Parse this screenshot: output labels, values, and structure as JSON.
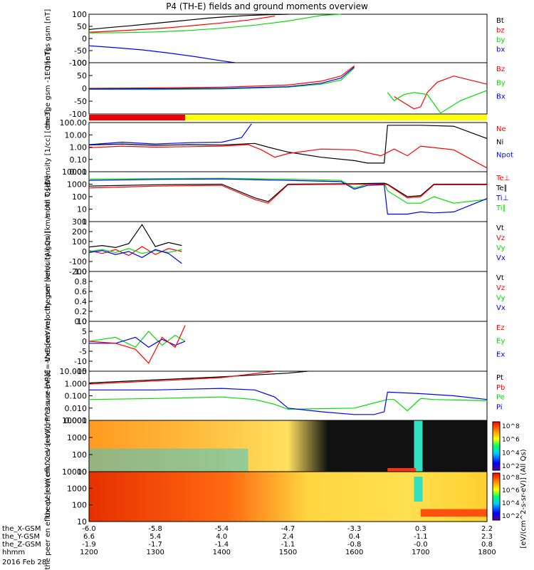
{
  "title": "P4 (TH-E) fields and ground moments overview",
  "colors": {
    "black": "#000000",
    "red": "#ff0000",
    "green": "#00dd00",
    "blue": "#0000ff",
    "yellow": "#ffff00"
  },
  "bottom_axis": {
    "times": [
      "1200",
      "1300",
      "1400",
      "1500",
      "1600",
      "1700",
      "1800"
    ],
    "rows": [
      {
        "label": "the_X-GSM",
        "values": [
          "-6.0",
          "-5.8",
          "-5.4",
          "-4.7",
          "-3.3",
          "0.3",
          "2.2"
        ]
      },
      {
        "label": "the_Y-GSM",
        "values": [
          "6.6",
          "5.4",
          "4.0",
          "2.4",
          "0.4",
          "-1.1",
          "2.3"
        ]
      },
      {
        "label": "the_Z-GSM",
        "values": [
          "-1.9",
          "-1.7",
          "-1.4",
          "-1.1",
          "-0.8",
          "-0.0",
          "0.8"
        ]
      },
      {
        "label": "hhmm",
        "values": []
      }
    ],
    "date": "2016 Feb 28"
  },
  "chart_data": [
    {
      "id": "fgs",
      "type": "line",
      "ylabel": "the fgs gsm [nT]",
      "ylim": [
        -100,
        100
      ],
      "ticks": [
        "100",
        "50",
        "0",
        "-50",
        "-100"
      ],
      "legend": [
        {
          "name": "Bt",
          "color": "#000000"
        },
        {
          "name": "bz",
          "color": "#ff0000"
        },
        {
          "name": "by",
          "color": "#00dd00"
        },
        {
          "name": "bx",
          "color": "#0000ff"
        }
      ],
      "series": [
        {
          "name": "Bt",
          "color": "#000000",
          "x": [
            1200,
            1230,
            1260,
            1290,
            1320,
            1350,
            1380,
            1410,
            1440,
            1470,
            1500
          ],
          "y": [
            37,
            45,
            52,
            60,
            68,
            76,
            84,
            90,
            95,
            98,
            100
          ]
        },
        {
          "name": "bz",
          "color": "#ff0000",
          "x": [
            1200,
            1240,
            1280,
            1320,
            1360,
            1400,
            1440,
            1480
          ],
          "y": [
            26,
            31,
            37,
            44,
            54,
            64,
            76,
            92
          ]
        },
        {
          "name": "by",
          "color": "#00dd00",
          "x": [
            1200,
            1250,
            1300,
            1350,
            1400,
            1450,
            1500,
            1550,
            1580
          ],
          "y": [
            23,
            24,
            27,
            33,
            42,
            55,
            72,
            95,
            100
          ]
        },
        {
          "name": "bx",
          "color": "#0000ff",
          "x": [
            1200,
            1240,
            1280,
            1320,
            1360,
            1400,
            1420
          ],
          "y": [
            -30,
            -38,
            -47,
            -60,
            -75,
            -92,
            -100
          ]
        }
      ]
    },
    {
      "id": "fge",
      "type": "line",
      "ylabel": "the fge gsm -1EQ [nT]",
      "ylim": [
        -125,
        125
      ],
      "ticks": [
        "100",
        "50",
        "0",
        "-50",
        "-100"
      ],
      "legend": [
        {
          "name": "Bz",
          "color": "#ff0000"
        },
        {
          "name": "By",
          "color": "#00dd00"
        },
        {
          "name": "Bx",
          "color": "#0000ff"
        }
      ],
      "series": [
        {
          "name": "Bz",
          "color": "#ff0000",
          "x": [
            1200,
            1300,
            1400,
            1500,
            1550,
            1580,
            1600
          ],
          "y": [
            0,
            2,
            6,
            16,
            35,
            60,
            110
          ]
        },
        {
          "name": "By",
          "color": "#00dd00",
          "x": [
            1200,
            1300,
            1400,
            1500,
            1550,
            1580,
            1600
          ],
          "y": [
            -5,
            -6,
            -3,
            6,
            20,
            40,
            100
          ]
        },
        {
          "name": "Bx",
          "color": "#0000ff",
          "x": [
            1200,
            1300,
            1400,
            1500,
            1550,
            1580,
            1600
          ],
          "y": [
            -3,
            -2,
            0,
            8,
            25,
            50,
            105
          ]
        },
        {
          "name": "Bz",
          "color": "#ff0000",
          "x": [
            1660,
            1675,
            1690,
            1700,
            1710,
            1725,
            1750,
            1800
          ],
          "y": [
            -40,
            -70,
            -100,
            -90,
            -20,
            30,
            60,
            20
          ]
        },
        {
          "name": "By",
          "color": "#00dd00",
          "x": [
            1650,
            1660,
            1675,
            1690,
            1710,
            1730,
            1760,
            1800
          ],
          "y": [
            -20,
            -60,
            -30,
            -20,
            -30,
            -120,
            -60,
            -10
          ]
        }
      ]
    },
    {
      "id": "density",
      "type": "line",
      "ylabel": "Density [1/cc] [cm-3]",
      "scale": "log",
      "ylim": [
        0.01,
        100
      ],
      "ticks": [
        "100.00",
        "10.00",
        "1.00",
        "0.10",
        "0.01"
      ],
      "legend": [
        {
          "name": "Ne",
          "color": "#ff0000"
        },
        {
          "name": "Ni",
          "color": "#000000"
        },
        {
          "name": "Npot",
          "color": "#0000ff"
        }
      ],
      "series": [
        {
          "name": "Ni",
          "color": "#000000",
          "x": [
            1200,
            1250,
            1300,
            1350,
            1400,
            1450,
            1470,
            1500,
            1550,
            1600,
            1620,
            1645,
            1650,
            1700,
            1750,
            1800
          ],
          "y": [
            1.5,
            1.8,
            1.4,
            1.6,
            1.5,
            2,
            1,
            0.4,
            0.15,
            0.08,
            0.05,
            0.05,
            60,
            60,
            50,
            5
          ]
        },
        {
          "name": "Ne",
          "color": "#ff0000",
          "x": [
            1200,
            1250,
            1300,
            1350,
            1400,
            1440,
            1460,
            1480,
            1500,
            1550,
            1600,
            1640,
            1660,
            1680,
            1700,
            1750,
            1800
          ],
          "y": [
            0.9,
            1.2,
            1.0,
            1.1,
            1.2,
            1.6,
            0.6,
            0.15,
            0.3,
            0.7,
            0.6,
            0.2,
            0.7,
            0.2,
            1.2,
            0.6,
            0.02
          ]
        },
        {
          "name": "Npot",
          "color": "#0000ff",
          "x": [
            1200,
            1250,
            1300,
            1350,
            1400,
            1430,
            1445
          ],
          "y": [
            1.6,
            2.5,
            1.8,
            2.3,
            2.5,
            6,
            80
          ]
        }
      ]
    },
    {
      "id": "temp",
      "type": "line",
      "ylabel": "mom T [eV]",
      "scale": "log",
      "ylim": [
        1,
        10000
      ],
      "ticks": [
        "10000",
        "1000",
        "100",
        "10",
        "1"
      ],
      "legend": [
        {
          "name": "Te⊥",
          "color": "#ff0000"
        },
        {
          "name": "Te∥",
          "color": "#000000"
        },
        {
          "name": "Ti⊥",
          "color": "#0000ff"
        },
        {
          "name": "Ti∥",
          "color": "#00dd00"
        }
      ],
      "series": [
        {
          "name": "Ti∥",
          "color": "#00dd00",
          "x": [
            1200,
            1300,
            1400,
            1500,
            1580,
            1600,
            1620,
            1645,
            1650,
            1680,
            1700,
            1720,
            1750,
            1800
          ],
          "y": [
            2500,
            2800,
            3000,
            2500,
            2000,
            500,
            1000,
            1200,
            300,
            30,
            30,
            100,
            30,
            60
          ]
        },
        {
          "name": "Ti⊥",
          "color": "#0000ff",
          "x": [
            1200,
            1300,
            1400,
            1500,
            1580,
            1600,
            1620,
            1645,
            1650,
            1680,
            1700,
            1720,
            1750,
            1800
          ],
          "y": [
            2000,
            2400,
            2600,
            2000,
            1600,
            400,
            800,
            900,
            4,
            4,
            6,
            5,
            6,
            70
          ]
        },
        {
          "name": "Te∥",
          "color": "#000000",
          "x": [
            1200,
            1300,
            1400,
            1450,
            1470,
            1500,
            1600,
            1645,
            1650,
            1680,
            1700,
            1720,
            1800
          ],
          "y": [
            700,
            900,
            1000,
            80,
            40,
            1000,
            1100,
            1200,
            1000,
            100,
            120,
            1000,
            1000
          ]
        },
        {
          "name": "Te⊥",
          "color": "#ff0000",
          "x": [
            1200,
            1300,
            1400,
            1450,
            1470,
            1500,
            1600,
            1645,
            1650,
            1680,
            1700,
            1720,
            1800
          ],
          "y": [
            500,
            700,
            800,
            60,
            30,
            900,
            1000,
            1000,
            900,
            80,
            100,
            900,
            900
          ]
        }
      ]
    },
    {
      "id": "peir_velocity",
      "type": "line",
      "ylabel": "the peir velocity gsm [km/s (All Qs)]",
      "ylim": [
        -200,
        300
      ],
      "ticks": [
        "300",
        "200",
        "100",
        "0",
        "-100",
        "-200"
      ],
      "legend": [
        {
          "name": "Vt",
          "color": "#000000"
        },
        {
          "name": "Vz",
          "color": "#ff0000"
        },
        {
          "name": "Vy",
          "color": "#00dd00"
        },
        {
          "name": "Vx",
          "color": "#0000ff"
        }
      ],
      "series": [
        {
          "name": "Vt",
          "color": "#000000",
          "x": [
            1200,
            1220,
            1240,
            1260,
            1280,
            1300,
            1320,
            1340
          ],
          "y": [
            45,
            60,
            40,
            80,
            270,
            50,
            90,
            60
          ]
        },
        {
          "name": "Vz",
          "color": "#ff0000",
          "x": [
            1200,
            1220,
            1240,
            1260,
            1280,
            1300,
            1320,
            1340
          ],
          "y": [
            10,
            -20,
            20,
            -40,
            50,
            -30,
            30,
            0
          ]
        },
        {
          "name": "Vy",
          "color": "#00dd00",
          "x": [
            1200,
            1220,
            1240,
            1260,
            1280,
            1300,
            1320,
            1340
          ],
          "y": [
            0,
            20,
            -10,
            30,
            -20,
            10,
            -10,
            20
          ]
        },
        {
          "name": "Vx",
          "color": "#0000ff",
          "x": [
            1200,
            1220,
            1240,
            1260,
            1280,
            1300,
            1320,
            1340
          ],
          "y": [
            -10,
            10,
            -30,
            0,
            -60,
            20,
            -20,
            -120
          ]
        }
      ]
    },
    {
      "id": "peer_velocity",
      "type": "line",
      "ylabel": "the peer velocity gsm [km/s (All Qs)]",
      "ylim": [
        0,
        1
      ],
      "ticks": [
        "1.0",
        "0.8",
        "0.6",
        "0.4",
        "0.2",
        "0.0"
      ],
      "legend": [
        {
          "name": "Vt",
          "color": "#000000"
        },
        {
          "name": "Vz",
          "color": "#ff0000"
        },
        {
          "name": "Vy",
          "color": "#00dd00"
        },
        {
          "name": "Vx",
          "color": "#0000ff"
        }
      ],
      "series": []
    },
    {
      "id": "efield",
      "type": "line",
      "ylabel": "E=-VxB [mV/m]",
      "ylim": [
        -15,
        10
      ],
      "ticks": [
        "10",
        "5",
        "0",
        "-5",
        "-10",
        "-15"
      ],
      "legend": [
        {
          "name": "Ez",
          "color": "#ff0000"
        },
        {
          "name": "Ey",
          "color": "#00dd00"
        },
        {
          "name": "Ex",
          "color": "#0000ff"
        }
      ],
      "series": [
        {
          "name": "Ey",
          "color": "#00dd00",
          "x": [
            1200,
            1240,
            1270,
            1290,
            1310,
            1330,
            1345
          ],
          "y": [
            0,
            2,
            -3,
            5,
            -2,
            3,
            0
          ]
        },
        {
          "name": "Ex",
          "color": "#0000ff",
          "x": [
            1200,
            1240,
            1270,
            1290,
            1310,
            1330,
            1345
          ],
          "y": [
            -1,
            -1,
            2,
            -3,
            1,
            -2,
            0
          ]
        },
        {
          "name": "Ez",
          "color": "#ff0000",
          "x": [
            1200,
            1240,
            1270,
            1290,
            1310,
            1330,
            1345
          ],
          "y": [
            0,
            -1,
            -4,
            -11,
            2,
            -3,
            8
          ]
        }
      ]
    },
    {
      "id": "pressure",
      "type": "line",
      "ylabel": "Pressure [nPa]",
      "scale": "log",
      "ylim": [
        0.001,
        10
      ],
      "ticks": [
        "10.000",
        "1.000",
        "0.100",
        "0.010",
        "0.001"
      ],
      "legend": [
        {
          "name": "Pt",
          "color": "#000000"
        },
        {
          "name": "Pb",
          "color": "#ff0000"
        },
        {
          "name": "Pe",
          "color": "#00dd00"
        },
        {
          "name": "Pi",
          "color": "#0000ff"
        }
      ],
      "series": [
        {
          "name": "Pt",
          "color": "#000000",
          "x": [
            1200,
            1300,
            1400,
            1500,
            1530
          ],
          "y": [
            1.1,
            2,
            3.5,
            7,
            10
          ]
        },
        {
          "name": "Pb",
          "color": "#ff0000",
          "x": [
            1200,
            1300,
            1400,
            1480
          ],
          "y": [
            0.9,
            1.6,
            3,
            10
          ]
        },
        {
          "name": "Pe",
          "color": "#00dd00",
          "x": [
            1200,
            1300,
            1400,
            1450,
            1480,
            1500,
            1600,
            1650,
            1660,
            1680,
            1700,
            1720,
            1800
          ],
          "y": [
            0.05,
            0.06,
            0.08,
            0.05,
            0.02,
            0.008,
            0.01,
            0.05,
            0.05,
            0.006,
            0.06,
            0.05,
            0.04
          ]
        },
        {
          "name": "Pi",
          "color": "#0000ff",
          "x": [
            1200,
            1300,
            1400,
            1450,
            1480,
            1500,
            1550,
            1600,
            1630,
            1645,
            1650,
            1700,
            1750,
            1800
          ],
          "y": [
            0.3,
            0.3,
            0.4,
            0.3,
            0.08,
            0.01,
            0.005,
            0.003,
            0.003,
            0.005,
            0.2,
            0.15,
            0.1,
            0.05
          ]
        }
      ]
    },
    {
      "id": "peir_spectrogram",
      "type": "heatmap",
      "ylabel": "the peir en eflux eV [eV/(cm^2-s-sr-eV)]",
      "scale": "log",
      "ylim": [
        5,
        20000
      ],
      "ticks": [
        "10000",
        "1000",
        "100",
        "10"
      ],
      "colorbar_ticks": [
        "10^8",
        "10^6",
        "10^4",
        "10^2"
      ]
    },
    {
      "id": "peer_spectrogram",
      "type": "heatmap",
      "ylabel": "the peer en eflux eV [eV/(cm^2-s-sr-eV)]",
      "scale": "log",
      "ylim": [
        5,
        20000
      ],
      "ticks": [
        "10000",
        "1000",
        "100",
        "10"
      ],
      "colorbar_ticks": [
        "10^8",
        "10^6",
        "10^4",
        "10^2"
      ]
    }
  ],
  "colorbar_label": "[eV/(cm^2-s-sr-eV)] (All Qs)"
}
